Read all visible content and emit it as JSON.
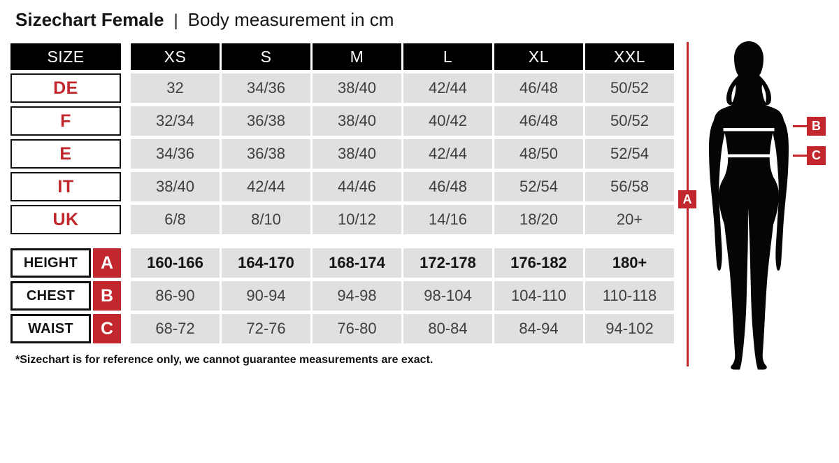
{
  "title": {
    "main": "Sizechart Female",
    "separator": "|",
    "subtitle": "Body measurement in cm"
  },
  "table": {
    "size_header": "SIZE",
    "columns": [
      "XS",
      "S",
      "M",
      "L",
      "XL",
      "XXL"
    ],
    "conversion_rows": [
      {
        "label": "DE",
        "values": [
          "32",
          "34/36",
          "38/40",
          "42/44",
          "46/48",
          "50/52"
        ]
      },
      {
        "label": "F",
        "values": [
          "32/34",
          "36/38",
          "38/40",
          "40/42",
          "46/48",
          "50/52"
        ]
      },
      {
        "label": "E",
        "values": [
          "34/36",
          "36/38",
          "38/40",
          "42/44",
          "48/50",
          "52/54"
        ]
      },
      {
        "label": "IT",
        "values": [
          "38/40",
          "42/44",
          "44/46",
          "46/48",
          "52/54",
          "56/58"
        ]
      },
      {
        "label": "UK",
        "values": [
          "6/8",
          "8/10",
          "10/12",
          "14/16",
          "18/20",
          "20+"
        ]
      }
    ],
    "measurement_rows": [
      {
        "label": "HEIGHT",
        "marker": "A",
        "bold": true,
        "values": [
          "160-166",
          "164-170",
          "168-174",
          "172-178",
          "176-182",
          "180+"
        ]
      },
      {
        "label": "CHEST",
        "marker": "B",
        "bold": false,
        "values": [
          "86-90",
          "90-94",
          "94-98",
          "98-104",
          "104-110",
          "110-118"
        ]
      },
      {
        "label": "WAIST",
        "marker": "C",
        "bold": false,
        "values": [
          "68-72",
          "72-76",
          "76-80",
          "80-84",
          "84-94",
          "94-102"
        ]
      }
    ]
  },
  "footnote": "*Sizechart is for reference only, we cannot guarantee measurements are exact.",
  "figure": {
    "markers": {
      "height": "A",
      "chest": "B",
      "waist": "C"
    }
  },
  "colors": {
    "accent_red": "#c1272d",
    "cell_gray": "#e0e0e0",
    "header_black": "#000000",
    "cell_text": "#3f3f3f"
  }
}
